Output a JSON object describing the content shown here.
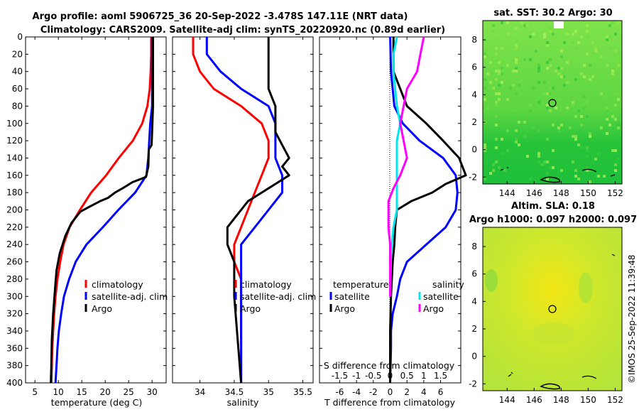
{
  "header": {
    "line1": "Argo profile: aoml 5906725_36 20-Sep-2022 -3.478S 147.11E (NRT data)",
    "line2": "Climatology: CARS2009. Satellite-adj clim: synTS_20220920.nc (0.89d earlier)"
  },
  "sst_title": "sat. SST: 30.2 Argo: 30",
  "sla_title_1": "Altim. SLA: 0.18",
  "sla_title_2": "Argo h1000: 0.097 h2000: 0.097",
  "credit": "©IMOS 25-Sep-2022 11:39:48",
  "colors": {
    "climatology": "#ff0000",
    "satellite": "#0000ff",
    "argo": "#000000",
    "sal_satellite": "#00e5ee",
    "sal_argo": "#ff00ff"
  },
  "chart_data": [
    {
      "id": "temperature",
      "type": "line",
      "xlabel": "temperature (deg C)",
      "ylabel": "",
      "xlim": [
        3,
        33
      ],
      "ylim": [
        400,
        0
      ],
      "xticks": [
        5,
        10,
        15,
        20,
        25,
        30
      ],
      "yticks": [
        0,
        20,
        40,
        60,
        80,
        100,
        120,
        140,
        160,
        180,
        200,
        220,
        240,
        260,
        280,
        300,
        320,
        340,
        360,
        380,
        400
      ],
      "legend": [
        "climatology",
        "satellite-adj. clim",
        "Argo"
      ],
      "series": [
        {
          "name": "climatology",
          "color": "#ff0000",
          "points": [
            [
              29.8,
              0
            ],
            [
              29.8,
              20
            ],
            [
              29.7,
              40
            ],
            [
              29.5,
              60
            ],
            [
              29.0,
              80
            ],
            [
              27.9,
              100
            ],
            [
              25.9,
              120
            ],
            [
              22.9,
              140
            ],
            [
              20.2,
              160
            ],
            [
              17.0,
              180
            ],
            [
              14.6,
              200
            ],
            [
              12.4,
              220
            ],
            [
              11.1,
              240
            ],
            [
              10.4,
              260
            ],
            [
              9.8,
              280
            ],
            [
              9.4,
              300
            ],
            [
              9.1,
              320
            ],
            [
              8.9,
              340
            ],
            [
              8.7,
              360
            ],
            [
              8.6,
              380
            ],
            [
              8.5,
              400
            ]
          ]
        },
        {
          "name": "satellite-adj. clim",
          "color": "#0000ff",
          "points": [
            [
              30.0,
              0
            ],
            [
              30.0,
              40
            ],
            [
              30.0,
              80
            ],
            [
              29.6,
              100
            ],
            [
              29.4,
              120
            ],
            [
              29.2,
              140
            ],
            [
              28.8,
              160
            ],
            [
              26.4,
              180
            ],
            [
              22.8,
              200
            ],
            [
              19.5,
              220
            ],
            [
              16.0,
              240
            ],
            [
              13.7,
              260
            ],
            [
              12.3,
              280
            ],
            [
              11.2,
              300
            ],
            [
              10.6,
              320
            ],
            [
              10.1,
              340
            ],
            [
              9.8,
              360
            ],
            [
              9.6,
              380
            ],
            [
              9.4,
              400
            ]
          ]
        },
        {
          "name": "Argo",
          "color": "#000000",
          "points": [
            [
              30.2,
              0
            ],
            [
              30.2,
              40
            ],
            [
              30.2,
              80
            ],
            [
              30.0,
              110
            ],
            [
              29.9,
              125
            ],
            [
              29.3,
              130
            ],
            [
              29.2,
              150
            ],
            [
              28.7,
              162
            ],
            [
              25.8,
              168
            ],
            [
              23.7,
              175
            ],
            [
              22.1,
              180
            ],
            [
              20.6,
              186
            ],
            [
              18.9,
              190
            ],
            [
              17.1,
              195
            ],
            [
              14.7,
              202
            ],
            [
              12.8,
              215
            ],
            [
              11.5,
              230
            ],
            [
              10.3,
              250
            ],
            [
              9.6,
              270
            ],
            [
              9.3,
              290
            ],
            [
              8.9,
              320
            ],
            [
              8.6,
              350
            ],
            [
              8.5,
              380
            ],
            [
              8.4,
              400
            ]
          ]
        }
      ]
    },
    {
      "id": "salinity",
      "type": "line",
      "xlabel": "salinity",
      "xlim": [
        33.6,
        35.65
      ],
      "ylim": [
        400,
        0
      ],
      "xticks": [
        34,
        34.5,
        35,
        35.5
      ],
      "legend": [
        "climatology",
        "satellite-adj. clim",
        "Argo"
      ],
      "series": [
        {
          "name": "climatology",
          "color": "#ff0000",
          "points": [
            [
              33.9,
              0
            ],
            [
              33.9,
              20
            ],
            [
              34.0,
              40
            ],
            [
              34.2,
              60
            ],
            [
              34.6,
              80
            ],
            [
              34.9,
              100
            ],
            [
              35.0,
              120
            ],
            [
              35.0,
              140
            ],
            [
              34.9,
              160
            ],
            [
              34.8,
              180
            ],
            [
              34.7,
              200
            ],
            [
              34.6,
              220
            ],
            [
              34.5,
              240
            ],
            [
              34.5,
              260
            ],
            [
              34.6,
              280
            ],
            [
              34.6,
              300
            ],
            [
              34.6,
              400
            ]
          ]
        },
        {
          "name": "satellite-adj. clim",
          "color": "#0000ff",
          "points": [
            [
              34.1,
              0
            ],
            [
              34.1,
              20
            ],
            [
              34.3,
              40
            ],
            [
              34.6,
              60
            ],
            [
              35.0,
              80
            ],
            [
              35.1,
              100
            ],
            [
              35.1,
              120
            ],
            [
              35.1,
              140
            ],
            [
              35.2,
              160
            ],
            [
              35.2,
              180
            ],
            [
              35.0,
              200
            ],
            [
              34.8,
              220
            ],
            [
              34.6,
              240
            ],
            [
              34.6,
              260
            ],
            [
              34.6,
              280
            ],
            [
              34.6,
              300
            ],
            [
              34.6,
              400
            ]
          ]
        },
        {
          "name": "Argo",
          "color": "#000000",
          "points": [
            [
              35.0,
              0
            ],
            [
              35.0,
              60
            ],
            [
              35.1,
              80
            ],
            [
              35.1,
              110
            ],
            [
              35.2,
              125
            ],
            [
              35.3,
              140
            ],
            [
              35.2,
              150
            ],
            [
              35.3,
              160
            ],
            [
              35.1,
              170
            ],
            [
              34.9,
              180
            ],
            [
              34.7,
              190
            ],
            [
              34.6,
              200
            ],
            [
              34.5,
              210
            ],
            [
              34.4,
              220
            ],
            [
              34.4,
              240
            ],
            [
              34.5,
              260
            ],
            [
              34.5,
              300
            ],
            [
              34.6,
              400
            ]
          ]
        }
      ]
    },
    {
      "id": "differences",
      "type": "line",
      "xlabel": "T difference from climatology",
      "top_axis_label": "S difference from climatology",
      "xlim": [
        -8.4,
        8.4
      ],
      "ylim": [
        400,
        0
      ],
      "xticks": [
        -6,
        -4,
        -2,
        0,
        2,
        4,
        6
      ],
      "top_ticks": [
        -1.5,
        -1,
        -0.5,
        0,
        0.5,
        1,
        1.5
      ],
      "top_tick_labels": [
        "-1.5",
        "-1",
        "-0.5",
        "0",
        "0.5",
        "1",
        "1.5"
      ],
      "legend_temperature_title": "temperature",
      "legend_salinity_title": "salinity",
      "legend_labels": [
        "satellite",
        "Argo",
        "satellite",
        "Argo"
      ],
      "series": [
        {
          "name": "T satellite",
          "color": "#0000ff",
          "points": [
            [
              0,
              0
            ],
            [
              0.1,
              40
            ],
            [
              0.5,
              80
            ],
            [
              1.5,
              100
            ],
            [
              3.5,
              120
            ],
            [
              6.3,
              140
            ],
            [
              7.8,
              160
            ],
            [
              8.0,
              180
            ],
            [
              7.8,
              200
            ],
            [
              6.6,
              220
            ],
            [
              4.3,
              240
            ],
            [
              2.0,
              260
            ],
            [
              1.2,
              280
            ],
            [
              0.8,
              300
            ],
            [
              0.3,
              320
            ],
            [
              0.1,
              340
            ],
            [
              0.1,
              360
            ],
            [
              0.0,
              400
            ]
          ]
        },
        {
          "name": "T Argo",
          "color": "#000000",
          "points": [
            [
              0.4,
              0
            ],
            [
              0.4,
              40
            ],
            [
              1.2,
              60
            ],
            [
              2.0,
              80
            ],
            [
              4.3,
              100
            ],
            [
              6.3,
              120
            ],
            [
              8.2,
              140
            ],
            [
              9.0,
              160
            ],
            [
              6.6,
              170
            ],
            [
              5.0,
              180
            ],
            [
              2.5,
              190
            ],
            [
              0.8,
              200
            ],
            [
              0.6,
              220
            ],
            [
              0.5,
              240
            ],
            [
              0.3,
              260
            ],
            [
              0.2,
              280
            ],
            [
              0.1,
              300
            ],
            [
              0.0,
              340
            ],
            [
              0.0,
              400
            ]
          ]
        },
        {
          "name": "S satellite",
          "color": "#00e5ee",
          "points": [
            [
              0.2,
              0
            ],
            [
              0.1,
              20
            ],
            [
              0.1,
              40
            ],
            [
              0.2,
              80
            ],
            [
              0.3,
              100
            ],
            [
              0.2,
              120
            ],
            [
              0.2,
              140
            ],
            [
              0.2,
              180
            ],
            [
              0.2,
              200
            ],
            [
              0.1,
              220
            ],
            [
              0.05,
              240
            ],
            [
              0.02,
              260
            ],
            [
              0.0,
              300
            ]
          ]
        },
        {
          "name": "S Argo",
          "color": "#ff00ff",
          "points": [
            [
              1.0,
              0
            ],
            [
              0.9,
              20
            ],
            [
              0.8,
              40
            ],
            [
              0.5,
              60
            ],
            [
              0.4,
              80
            ],
            [
              0.3,
              100
            ],
            [
              0.4,
              120
            ],
            [
              0.5,
              140
            ],
            [
              0.3,
              160
            ],
            [
              0.1,
              175
            ],
            [
              -0.05,
              190
            ],
            [
              -0.05,
              220
            ],
            [
              0.0,
              240
            ],
            [
              0.0,
              300
            ]
          ]
        }
      ]
    },
    {
      "id": "sst_map",
      "type": "heatmap",
      "title": "sat. SST: 30.2 Argo: 30",
      "xticks": [
        144,
        146,
        148,
        150,
        152
      ],
      "yticks": [
        -2,
        0,
        2,
        4,
        6,
        8
      ],
      "xlim": [
        142.2,
        152.5
      ],
      "ylim": [
        -2.5,
        9.4
      ],
      "argo_position": [
        147.11,
        3.5
      ]
    },
    {
      "id": "sla_map",
      "type": "heatmap",
      "title": "Altim. SLA: 0.18 / Argo h1000: 0.097 h2000: 0.097",
      "xticks": [
        144,
        146,
        148,
        150,
        152
      ],
      "yticks": [
        -2,
        0,
        2,
        4,
        6,
        8
      ],
      "xlim": [
        142.2,
        152.5
      ],
      "ylim": [
        -2.5,
        9.4
      ],
      "argo_position": [
        147.11,
        3.5
      ]
    }
  ]
}
